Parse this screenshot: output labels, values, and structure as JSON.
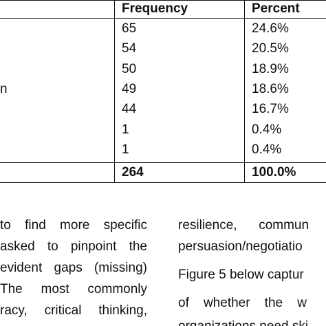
{
  "table": {
    "headers": {
      "frequency": "Frequency",
      "percent": "Percent"
    },
    "row_label_partial": "n",
    "rows": [
      {
        "frequency": "65",
        "percent": "24.6%"
      },
      {
        "frequency": "54",
        "percent": "20.5%"
      },
      {
        "frequency": "50",
        "percent": "18.9%"
      },
      {
        "frequency": "49",
        "percent": "18.6%"
      },
      {
        "frequency": "44",
        "percent": "16.7%"
      },
      {
        "frequency": "1",
        "percent": "0.4%"
      },
      {
        "frequency": "1",
        "percent": "0.4%"
      }
    ],
    "total": {
      "frequency": "264",
      "percent": "100.0%"
    }
  },
  "left_column": [
    "to find more specific",
    "asked to pinpoint the",
    "evident gaps (missing)",
    "The most commonly",
    "racy, critical thinking,"
  ],
  "right_column": [
    "resilience,      commun",
    "persuasion/negotiatio",
    "Figure 5 below captur",
    "of    whether    the    w",
    "organizations need ski"
  ]
}
